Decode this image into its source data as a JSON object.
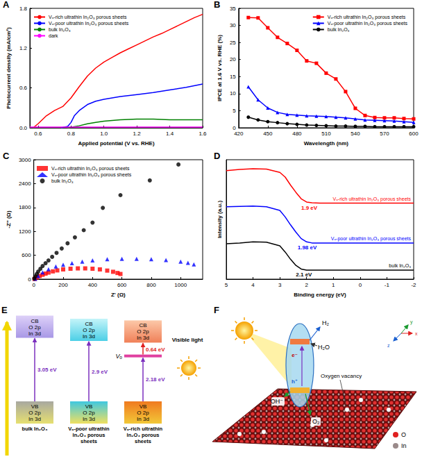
{
  "chart_data": [
    {
      "panel": "A",
      "type": "line",
      "xlabel": "Applied potential (V vs. RHE)",
      "ylabel": "Photocurrent density (mA/cm²)",
      "xlim": [
        0.55,
        1.6
      ],
      "xticks": [
        0.6,
        0.8,
        {
          "value": 1,
          "label": "1.0"
        },
        1.2,
        1.4,
        1.6
      ],
      "ylim": [
        0,
        1.8
      ],
      "yticks": [
        {
          "value": 0,
          "label": "0.0"
        },
        0.6,
        1.2,
        1.8
      ],
      "grid": false,
      "legend": "upper left",
      "series": [
        {
          "name": "Vₒ-rich ultrathin In₂O₃ porous sheets",
          "color": "#ff0000",
          "marker": "none",
          "line_style": "solid",
          "x": [
            0.57,
            0.6,
            0.65,
            0.7,
            0.75,
            0.8,
            0.85,
            0.9,
            0.95,
            1.0,
            1.05,
            1.1,
            1.15,
            1.2,
            1.25,
            1.3,
            1.35,
            1.4,
            1.45,
            1.5,
            1.55,
            1.6
          ],
          "values": [
            0.0,
            0.06,
            0.18,
            0.26,
            0.32,
            0.45,
            0.62,
            0.78,
            0.9,
            0.99,
            1.06,
            1.13,
            1.19,
            1.25,
            1.31,
            1.37,
            1.42,
            1.48,
            1.54,
            1.6,
            1.66,
            1.71
          ]
        },
        {
          "name": "Vₒ-poor ultrathin In₂O₃ porous sheets",
          "color": "#0000ff",
          "marker": "none",
          "line_style": "solid",
          "x": [
            0.74,
            0.78,
            0.8,
            0.82,
            0.85,
            0.9,
            0.95,
            1.0,
            1.1,
            1.2,
            1.3,
            1.4,
            1.5,
            1.6
          ],
          "values": [
            0.0,
            0.02,
            0.08,
            0.18,
            0.26,
            0.35,
            0.4,
            0.43,
            0.47,
            0.5,
            0.53,
            0.57,
            0.61,
            0.66
          ]
        },
        {
          "name": "bulk In₂O₃",
          "color": "#008000",
          "marker": "none",
          "line_style": "solid",
          "x": [
            0.78,
            0.85,
            0.9,
            0.95,
            1.0,
            1.1,
            1.2,
            1.3,
            1.4,
            1.5,
            1.6
          ],
          "values": [
            0.0,
            0.03,
            0.06,
            0.08,
            0.1,
            0.12,
            0.13,
            0.13,
            0.12,
            0.12,
            0.12
          ]
        },
        {
          "name": "dark",
          "color": "#ff00ff",
          "marker": "none",
          "line_style": "solid",
          "x": [
            0.55,
            0.8,
            1.1,
            1.4,
            1.6
          ],
          "values": [
            0.01,
            0.01,
            0.01,
            0.01,
            0.01
          ]
        }
      ]
    },
    {
      "panel": "B",
      "type": "line",
      "xlabel": "Wavelength (nm)",
      "ylabel": "IPCE at 1.6 V vs. RHE (%)",
      "xlim": [
        420,
        600
      ],
      "xticks": [
        420,
        450,
        480,
        510,
        540,
        570,
        600
      ],
      "ylim": [
        0,
        35
      ],
      "yticks": [
        0,
        5,
        10,
        15,
        20,
        25,
        30,
        35
      ],
      "grid": false,
      "legend": "upper right",
      "x": [
        430,
        440,
        450,
        460,
        470,
        480,
        490,
        500,
        510,
        520,
        530,
        540,
        550,
        560,
        570,
        580,
        590,
        600
      ],
      "series": [
        {
          "name": "Vₒ-rich ultrathin In₂O₃ porous sheets",
          "color": "#ff0000",
          "marker": "square",
          "line_style": "solid",
          "values": [
            32.3,
            32.2,
            29.3,
            26.5,
            24.7,
            22.7,
            19.6,
            18.9,
            16.0,
            14.3,
            10.6,
            5.7,
            3.6,
            3.0,
            2.9,
            2.9,
            2.7,
            2.6
          ]
        },
        {
          "name": "Vₒ-poor ultrathin In₂O₃ porous sheets",
          "color": "#0000ff",
          "marker": "triangle",
          "line_style": "solid",
          "values": [
            12.0,
            8.2,
            5.8,
            4.5,
            3.9,
            3.7,
            3.5,
            3.4,
            3.3,
            3.1,
            2.9,
            2.6,
            2.3,
            2.2,
            2.1,
            2.0,
            1.8,
            1.6
          ]
        },
        {
          "name": "bulk In₂O₃",
          "color": "#000000",
          "marker": "circle",
          "line_style": "solid",
          "values": [
            3.1,
            2.3,
            1.8,
            1.5,
            1.2,
            1.0,
            0.8,
            0.7,
            0.6,
            0.5,
            0.5,
            0.4,
            0.4,
            0.3,
            0.3,
            0.3,
            0.3,
            0.3
          ]
        }
      ]
    },
    {
      "panel": "C",
      "type": "scatter",
      "xlabel": "Z' (Ω)",
      "ylabel": "-Z'' (Ω)",
      "xlim": [
        0,
        1150
      ],
      "xticks": [
        0,
        200,
        400,
        600,
        800,
        1000
      ],
      "ylim": [
        0,
        3000
      ],
      "yticks": [
        0,
        600,
        1200,
        1800,
        2400,
        3000
      ],
      "grid": false,
      "legend": "upper left",
      "series": [
        {
          "name": "Vₒ-rich ultrathin In₂O₃ porous sheets",
          "color": "#ff0000",
          "marker": "square",
          "x": [
            5,
            20,
            40,
            60,
            80,
            100,
            130,
            160,
            200,
            250,
            300,
            350,
            400,
            450,
            500,
            540,
            570,
            590
          ],
          "values": [
            5,
            40,
            80,
            110,
            140,
            165,
            195,
            220,
            245,
            262,
            270,
            270,
            262,
            245,
            215,
            185,
            155,
            130
          ]
        },
        {
          "name": "Vₒ-poor ultrathin In₂O₃ porous sheets",
          "color": "#0000ff",
          "marker": "triangle",
          "x": [
            10,
            30,
            60,
            100,
            150,
            200,
            260,
            330,
            400,
            500,
            600,
            700,
            800,
            900,
            1000,
            1050,
            1090
          ],
          "values": [
            10,
            80,
            170,
            250,
            320,
            360,
            400,
            440,
            470,
            500,
            510,
            510,
            500,
            480,
            440,
            410,
            370
          ]
        },
        {
          "name": "bulk In₂O₃",
          "color": "#000000",
          "marker": "circle",
          "x": [
            3,
            10,
            20,
            30,
            45,
            60,
            80,
            100,
            125,
            155,
            190,
            230,
            280,
            340,
            400,
            470,
            590,
            790,
            985
          ],
          "values": [
            15,
            70,
            130,
            190,
            260,
            330,
            400,
            470,
            560,
            660,
            770,
            900,
            1050,
            1230,
            1420,
            1790,
            2110,
            2480,
            2880
          ]
        }
      ]
    },
    {
      "panel": "D",
      "type": "line",
      "xlabel": "Binding energy (eV)",
      "ylabel": "Intensity (a.u.)",
      "xlim": [
        5,
        -2
      ],
      "xticks": [
        5,
        4,
        3,
        2,
        1,
        0,
        -1,
        -2
      ],
      "ylim": [
        0,
        3.3
      ],
      "yticks": [],
      "tick_labels": "x",
      "grid": false,
      "x": [
        5,
        4.5,
        4,
        3.5,
        3,
        2.8,
        2.6,
        2.4,
        2.2,
        2.0,
        1.8,
        1.5,
        1,
        0,
        -1,
        -2
      ],
      "series": [
        {
          "name": "Vₒ-rich ultrathin In₂O₃ porous sheets",
          "color": "#ff0000",
          "marker": "none",
          "line_style": "solid",
          "values": [
            3.0,
            3.03,
            3.05,
            3.04,
            2.95,
            2.82,
            2.6,
            2.4,
            2.22,
            2.13,
            2.11,
            2.1,
            2.1,
            2.1,
            2.1,
            2.1
          ],
          "edge": {
            "value": 1.9,
            "label": "1.9 eV"
          }
        },
        {
          "name": "Vₒ-poor ultrathin In₂O₃ porous sheets",
          "color": "#0000ff",
          "marker": "none",
          "line_style": "solid",
          "values": [
            2.0,
            2.01,
            2.02,
            2.0,
            1.9,
            1.72,
            1.5,
            1.3,
            1.12,
            1.03,
            1.0,
            1.0,
            1.0,
            1.0,
            1.0,
            1.0
          ],
          "edge": {
            "value": 1.98,
            "label": "1.98 eV"
          }
        },
        {
          "name": "bulk In₂O₃",
          "color": "#000000",
          "marker": "none",
          "line_style": "solid",
          "values": [
            0.98,
            1.0,
            1.03,
            1.02,
            0.92,
            0.75,
            0.55,
            0.38,
            0.28,
            0.25,
            0.25,
            0.25,
            0.25,
            0.25,
            0.25,
            0.25
          ],
          "edge": {
            "value": 2.1,
            "label": "2.1 eV"
          }
        }
      ]
    }
  ],
  "diagram_e": {
    "panel": "E",
    "light": "Visible light",
    "columns": [
      {
        "name": "bulk In₂O₃",
        "cb": [
          "CB",
          "O 2p",
          "In 3d"
        ],
        "vb": [
          "VB",
          "O 2p",
          "In 3d"
        ],
        "gap": {
          "value": 3.05,
          "label": "3.05 eV"
        }
      },
      {
        "name": "Vₒ-poor ultrathin In₂O₃ porous sheets",
        "cb": [
          "CB",
          "O 2p",
          "In 3d"
        ],
        "vb": [
          "VB",
          "O 2p",
          "In 3d"
        ],
        "gap": {
          "value": 2.9,
          "label": "2.9 eV"
        }
      },
      {
        "name": "Vₒ-rich ultrathin In₂O₃ porous sheets",
        "cb": [
          "CB",
          "O 2p",
          "In 3d"
        ],
        "vb": [
          "VB",
          "O 2p",
          "In 3d"
        ],
        "gap": {
          "value": 2.18,
          "label": "2.18 eV"
        },
        "defect": {
          "label": "Vₒ",
          "gap": {
            "value": 0.64,
            "label": "0.64 eV"
          }
        }
      }
    ]
  },
  "diagram_f": {
    "panel": "F",
    "h2": "H₂",
    "h2o": "H₂O",
    "oh": "OH⁻",
    "o2": "O₂",
    "electron": "e⁻",
    "hole": "h⁺",
    "vacancy": "Oxygen vacancy",
    "axes": [
      "x",
      "y",
      "z"
    ],
    "atoms": [
      "O",
      "In"
    ]
  }
}
